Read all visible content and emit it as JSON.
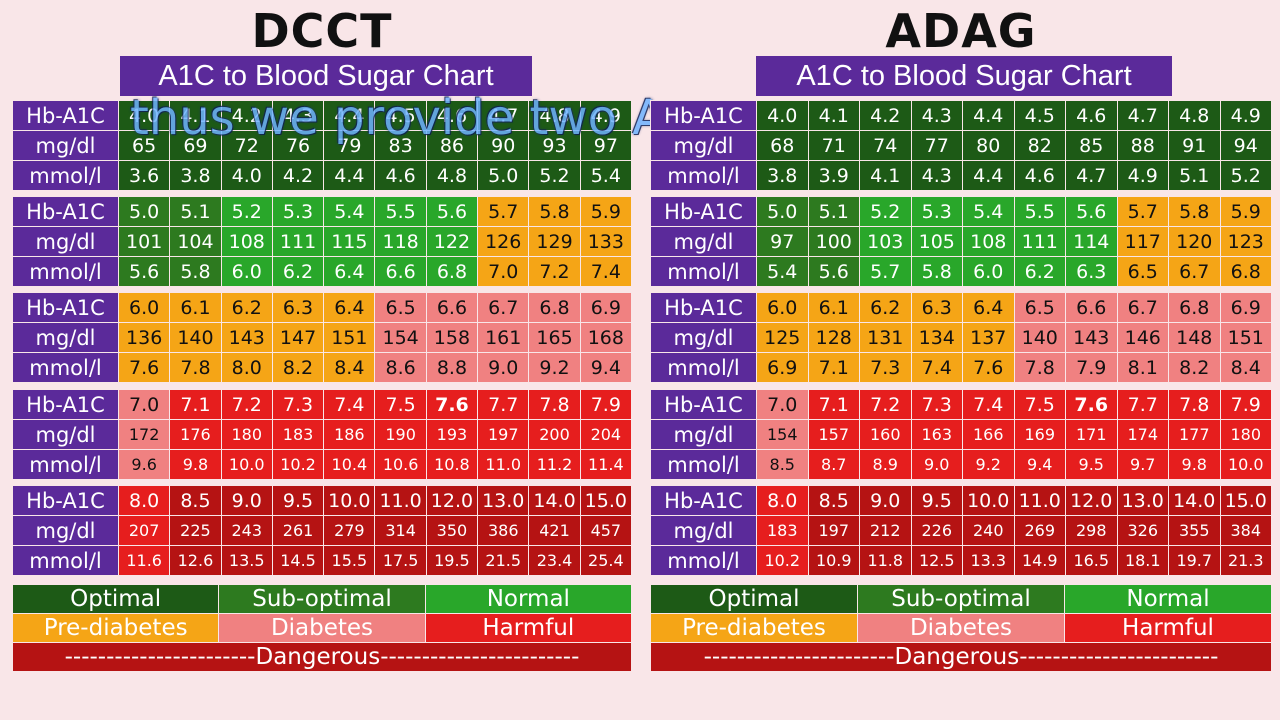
{
  "row_labels": [
    "Hb-A1C",
    "mg/dl",
    "mmol/l"
  ],
  "panels": [
    {
      "title": "DCCT",
      "subtitle": "A1C to Blood Sugar Chart",
      "blocks": [
        {
          "a1c": [
            "4.0",
            "4.1",
            "4.2",
            "4.3",
            "4.4",
            "4.5",
            "4.6",
            "4.7",
            "4.8",
            "4.9"
          ],
          "mgdl": [
            "65",
            "69",
            "72",
            "76",
            "79",
            "83",
            "86",
            "90",
            "93",
            "97"
          ],
          "mmol": [
            "3.6",
            "3.8",
            "4.0",
            "4.2",
            "4.4",
            "4.6",
            "4.8",
            "5.0",
            "5.2",
            "5.4"
          ],
          "cats": [
            "optimal",
            "optimal",
            "optimal",
            "optimal",
            "optimal",
            "optimal",
            "optimal",
            "optimal",
            "optimal",
            "optimal"
          ]
        },
        {
          "a1c": [
            "5.0",
            "5.1",
            "5.2",
            "5.3",
            "5.4",
            "5.5",
            "5.6",
            "5.7",
            "5.8",
            "5.9"
          ],
          "mgdl": [
            "101",
            "104",
            "108",
            "111",
            "115",
            "118",
            "122",
            "126",
            "129",
            "133"
          ],
          "mmol": [
            "5.6",
            "5.8",
            "6.0",
            "6.2",
            "6.4",
            "6.6",
            "6.8",
            "7.0",
            "7.2",
            "7.4"
          ],
          "cats": [
            "suboptimal",
            "suboptimal",
            "normal",
            "normal",
            "normal",
            "normal",
            "normal",
            "prediabetes",
            "prediabetes",
            "prediabetes"
          ]
        },
        {
          "a1c": [
            "6.0",
            "6.1",
            "6.2",
            "6.3",
            "6.4",
            "6.5",
            "6.6",
            "6.7",
            "6.8",
            "6.9"
          ],
          "mgdl": [
            "136",
            "140",
            "143",
            "147",
            "151",
            "154",
            "158",
            "161",
            "165",
            "168"
          ],
          "mmol": [
            "7.6",
            "7.8",
            "8.0",
            "8.2",
            "8.4",
            "8.6",
            "8.8",
            "9.0",
            "9.2",
            "9.4"
          ],
          "cats": [
            "prediabetes",
            "prediabetes",
            "prediabetes",
            "prediabetes",
            "prediabetes",
            "diabetes",
            "diabetes",
            "diabetes",
            "diabetes",
            "diabetes"
          ]
        },
        {
          "a1c": [
            "7.0",
            "7.1",
            "7.2",
            "7.3",
            "7.4",
            "7.5",
            "7.6",
            "7.7",
            "7.8",
            "7.9"
          ],
          "mgdl": [
            "172",
            "176",
            "180",
            "183",
            "186",
            "190",
            "193",
            "197",
            "200",
            "204"
          ],
          "mmol": [
            "9.6",
            "9.8",
            "10.0",
            "10.2",
            "10.4",
            "10.6",
            "10.8",
            "11.0",
            "11.2",
            "11.4"
          ],
          "cats": [
            "diabetes",
            "harmful",
            "harmful",
            "harmful",
            "harmful",
            "harmful",
            "harmful",
            "harmful",
            "harmful",
            "harmful"
          ]
        },
        {
          "a1c": [
            "8.0",
            "8.5",
            "9.0",
            "9.5",
            "10.0",
            "11.0",
            "12.0",
            "13.0",
            "14.0",
            "15.0"
          ],
          "mgdl": [
            "207",
            "225",
            "243",
            "261",
            "279",
            "314",
            "350",
            "386",
            "421",
            "457"
          ],
          "mmol": [
            "11.6",
            "12.6",
            "13.5",
            "14.5",
            "15.5",
            "17.5",
            "19.5",
            "21.5",
            "23.4",
            "25.4"
          ],
          "cats": [
            "harmful",
            "dangerous",
            "dangerous",
            "dangerous",
            "dangerous",
            "dangerous",
            "dangerous",
            "dangerous",
            "dangerous",
            "dangerous"
          ]
        }
      ]
    },
    {
      "title": "ADAG",
      "subtitle": "A1C to Blood Sugar Chart",
      "blocks": [
        {
          "a1c": [
            "4.0",
            "4.1",
            "4.2",
            "4.3",
            "4.4",
            "4.5",
            "4.6",
            "4.7",
            "4.8",
            "4.9"
          ],
          "mgdl": [
            "68",
            "71",
            "74",
            "77",
            "80",
            "82",
            "85",
            "88",
            "91",
            "94"
          ],
          "mmol": [
            "3.8",
            "3.9",
            "4.1",
            "4.3",
            "4.4",
            "4.6",
            "4.7",
            "4.9",
            "5.1",
            "5.2"
          ],
          "cats": [
            "optimal",
            "optimal",
            "optimal",
            "optimal",
            "optimal",
            "optimal",
            "optimal",
            "optimal",
            "optimal",
            "optimal"
          ]
        },
        {
          "a1c": [
            "5.0",
            "5.1",
            "5.2",
            "5.3",
            "5.4",
            "5.5",
            "5.6",
            "5.7",
            "5.8",
            "5.9"
          ],
          "mgdl": [
            "97",
            "100",
            "103",
            "105",
            "108",
            "111",
            "114",
            "117",
            "120",
            "123"
          ],
          "mmol": [
            "5.4",
            "5.6",
            "5.7",
            "5.8",
            "6.0",
            "6.2",
            "6.3",
            "6.5",
            "6.7",
            "6.8"
          ],
          "cats": [
            "suboptimal",
            "suboptimal",
            "normal",
            "normal",
            "normal",
            "normal",
            "normal",
            "prediabetes",
            "prediabetes",
            "prediabetes"
          ]
        },
        {
          "a1c": [
            "6.0",
            "6.1",
            "6.2",
            "6.3",
            "6.4",
            "6.5",
            "6.6",
            "6.7",
            "6.8",
            "6.9"
          ],
          "mgdl": [
            "125",
            "128",
            "131",
            "134",
            "137",
            "140",
            "143",
            "146",
            "148",
            "151"
          ],
          "mmol": [
            "6.9",
            "7.1",
            "7.3",
            "7.4",
            "7.6",
            "7.8",
            "7.9",
            "8.1",
            "8.2",
            "8.4"
          ],
          "cats": [
            "prediabetes",
            "prediabetes",
            "prediabetes",
            "prediabetes",
            "prediabetes",
            "diabetes",
            "diabetes",
            "diabetes",
            "diabetes",
            "diabetes"
          ]
        },
        {
          "a1c": [
            "7.0",
            "7.1",
            "7.2",
            "7.3",
            "7.4",
            "7.5",
            "7.6",
            "7.7",
            "7.8",
            "7.9"
          ],
          "mgdl": [
            "154",
            "157",
            "160",
            "163",
            "166",
            "169",
            "171",
            "174",
            "177",
            "180"
          ],
          "mmol": [
            "8.5",
            "8.7",
            "8.9",
            "9.0",
            "9.2",
            "9.4",
            "9.5",
            "9.7",
            "9.8",
            "10.0"
          ],
          "cats": [
            "diabetes",
            "harmful",
            "harmful",
            "harmful",
            "harmful",
            "harmful",
            "harmful",
            "harmful",
            "harmful",
            "harmful"
          ]
        },
        {
          "a1c": [
            "8.0",
            "8.5",
            "9.0",
            "9.5",
            "10.0",
            "11.0",
            "12.0",
            "13.0",
            "14.0",
            "15.0"
          ],
          "mgdl": [
            "183",
            "197",
            "212",
            "226",
            "240",
            "269",
            "298",
            "326",
            "355",
            "384"
          ],
          "mmol": [
            "10.2",
            "10.9",
            "11.8",
            "12.5",
            "13.3",
            "14.9",
            "16.5",
            "18.1",
            "19.7",
            "21.3"
          ],
          "cats": [
            "harmful",
            "dangerous",
            "dangerous",
            "dangerous",
            "dangerous",
            "dangerous",
            "dangerous",
            "dangerous",
            "dangerous",
            "dangerous"
          ]
        }
      ]
    }
  ],
  "legend": {
    "optimal": "Optimal",
    "suboptimal": "Sub-optimal",
    "normal": "Normal",
    "prediabetes": "Pre-diabetes",
    "diabetes": "Diabetes",
    "harmful": "Harmful",
    "dangerous": "-----------------------Dangerous------------------------"
  },
  "caption_overlay": "thus we provide two A",
  "colors": {
    "optimal": "#1d5a16",
    "suboptimal": "#2d7a1f",
    "normal": "#29a72a",
    "prediabetes": "#f5a516",
    "diabetes": "#f08181",
    "harmful": "#e61e1e",
    "dangerous": "#b51313",
    "label_bg": "#5b2a9a"
  }
}
